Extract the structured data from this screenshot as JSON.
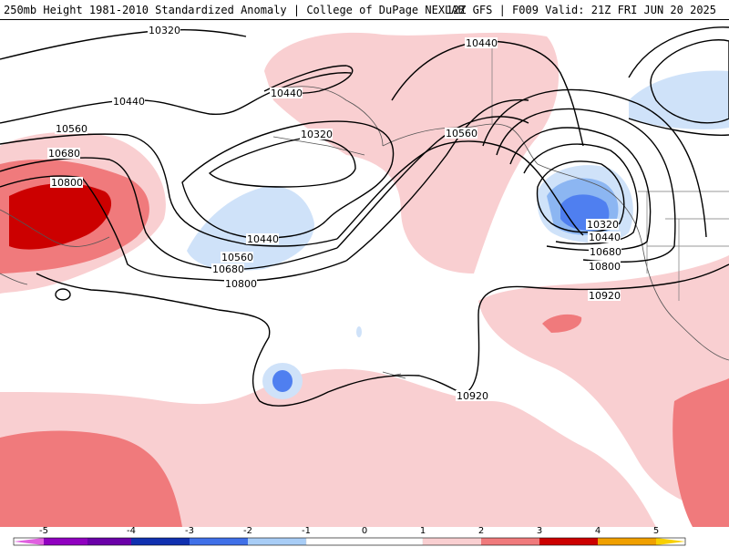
{
  "header": {
    "title": "250mb Height 1981-2010 Standardized Anomaly | College of DuPage NEXLAB",
    "run_info": "12Z GFS | F009 Valid: 21Z FRI JUN 20 2025"
  },
  "contours": {
    "c10320": "10320",
    "c10440": "10440",
    "c10560": "10560",
    "c10680": "10680",
    "c10800": "10800",
    "c10920": "10920"
  },
  "colorbar": {
    "ticks": [
      "-5",
      "-4",
      "-3",
      "-2",
      "-1",
      "0",
      "1",
      "2",
      "3",
      "4",
      "5"
    ],
    "colors": [
      "#e060e0",
      "#9000c0",
      "#1030b0",
      "#4070e8",
      "#80b0f0",
      "#c8e0f8",
      "#ffffff",
      "#ffffff",
      "#f8c8c8",
      "#f08080",
      "#e04040",
      "#c00000",
      "#f0a000",
      "#f8d000"
    ]
  },
  "anomaly_colors": {
    "light_positive": "#f9cfd1",
    "medium_positive": "#f07a7c",
    "strong_positive": "#cc0000",
    "light_negative": "#cfe2f9",
    "medium_negative": "#8cb6f2",
    "strong_negative": "#4f7ff0"
  }
}
